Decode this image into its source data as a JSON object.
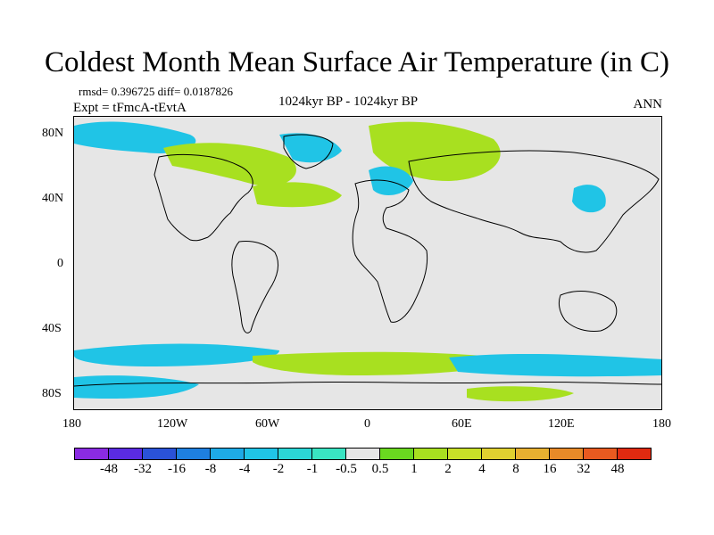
{
  "title": "Coldest Month Mean Surface Air Temperature (in C)",
  "stats": "rmsd= 0.396725 diff= 0.0187826",
  "experiment": "Expt = tFmcA-tEvtA",
  "period": "1024kyr BP - 1024kyr BP",
  "season": "ANN",
  "axes": {
    "lat_ticks": [
      "80N",
      "40N",
      "0",
      "40S",
      "80S"
    ],
    "lon_ticks": [
      "180",
      "120W",
      "60W",
      "0",
      "60E",
      "120E",
      "180"
    ]
  },
  "colorbar": {
    "labels": [
      "-48",
      "-32",
      "-16",
      "-8",
      "-4",
      "-2",
      "-1",
      "-0.5",
      "0.5",
      "1",
      "2",
      "4",
      "8",
      "16",
      "32",
      "48"
    ],
    "colors": [
      "#8a2be2",
      "#5a2be2",
      "#2a52d8",
      "#1e7fe0",
      "#1eaae6",
      "#20c4e6",
      "#2bd6d6",
      "#39e4c2",
      "#e6e6e6",
      "#6ad820",
      "#a8e020",
      "#c8e028",
      "#e0d030",
      "#e8b030",
      "#e88a28",
      "#e85a20",
      "#e02a10"
    ]
  },
  "colors": {
    "background": "#e6e6e6",
    "cyan": "#20c4e6",
    "green": "#a8e020"
  }
}
